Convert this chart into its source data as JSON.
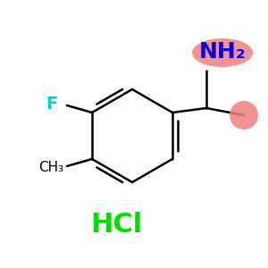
{
  "background_color": "#ffffff",
  "figsize": [
    3.0,
    3.0
  ],
  "dpi": 100,
  "bond_color": "#000000",
  "bond_lw": 1.8,
  "ring_color": "#000000",
  "F_label": "F",
  "F_color": "#00CCCC",
  "F_fontsize": 14,
  "CH3_label": "CH₃",
  "CH3_color": "#000000",
  "CH3_fontsize": 11,
  "HCl_label": "HCl",
  "HCl_color": "#00DD00",
  "HCl_fontsize": 22,
  "NH2_label": "NH₂",
  "NH2_color": "#0000EE",
  "NH2_fontsize": 18,
  "NH2_oval_color": "#F08080",
  "Me_dot_color": "#F08080"
}
